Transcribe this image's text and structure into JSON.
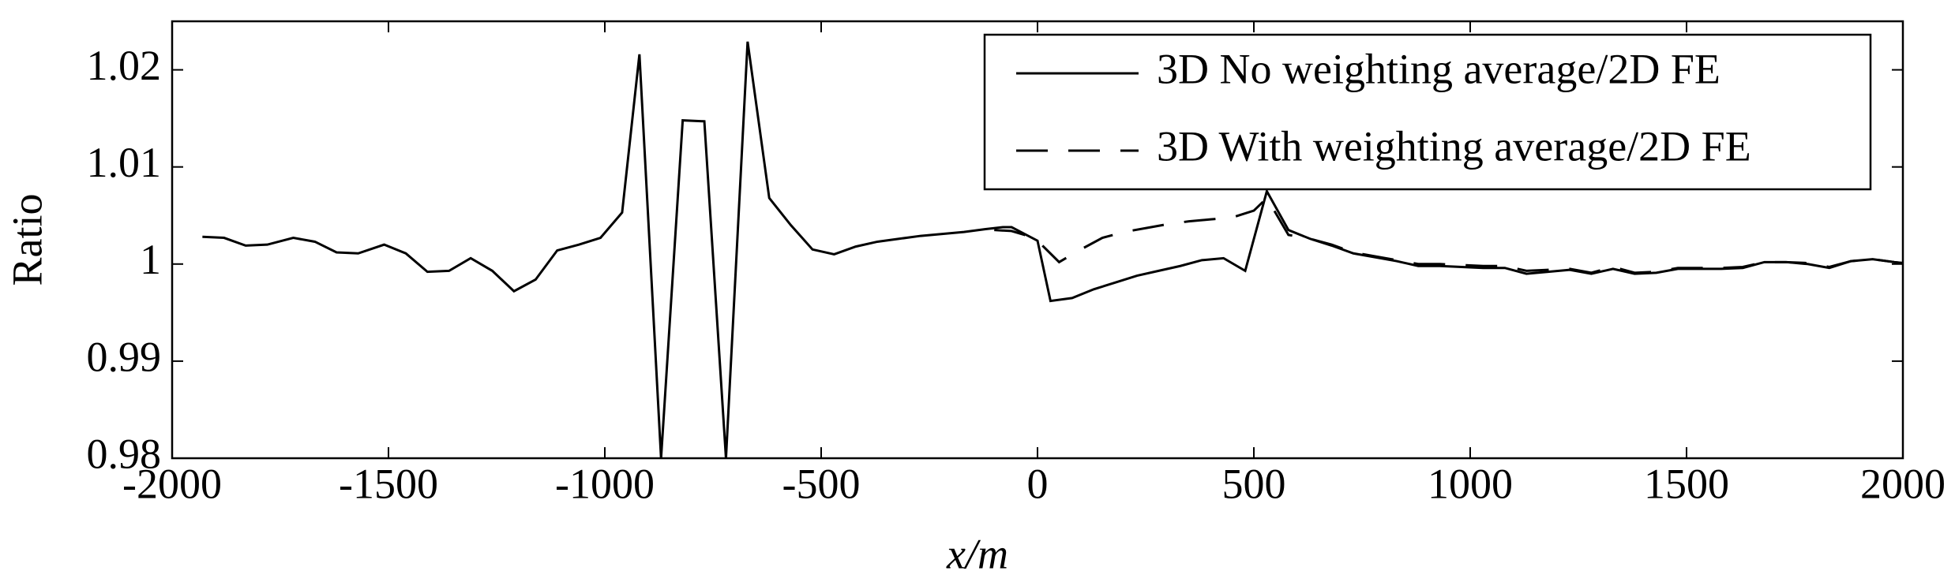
{
  "chart_data": {
    "type": "line",
    "xlabel": "x/m",
    "ylabel": "Ratio",
    "xlim": [
      -2000,
      2000
    ],
    "ylim": [
      0.98,
      1.025
    ],
    "xticks": [
      -2000,
      -1500,
      -1000,
      -500,
      0,
      500,
      1000,
      1500,
      2000
    ],
    "yticks": [
      0.98,
      0.99,
      1,
      1.01,
      1.02
    ],
    "legend": "upper right",
    "series": [
      {
        "name": "3D No weighting average/2D FE",
        "color": "#000000",
        "dash": "solid",
        "x": [
          -1930,
          -1880,
          -1830,
          -1780,
          -1720,
          -1670,
          -1620,
          -1570,
          -1510,
          -1460,
          -1410,
          -1360,
          -1310,
          -1260,
          -1210,
          -1160,
          -1110,
          -1060,
          -1010,
          -960,
          -920,
          -870,
          -820,
          -770,
          -720,
          -670,
          -620,
          -570,
          -520,
          -470,
          -420,
          -370,
          -320,
          -270,
          -220,
          -170,
          -120,
          -80,
          -60,
          0,
          30,
          80,
          130,
          180,
          230,
          280,
          330,
          380,
          430,
          480,
          530,
          580,
          630,
          680,
          730,
          780,
          830,
          880,
          930,
          980,
          1030,
          1080,
          1130,
          1180,
          1230,
          1280,
          1330,
          1380,
          1430,
          1480,
          1530,
          1580,
          1630,
          1680,
          1730,
          1780,
          1830,
          1880,
          1930,
          1980,
          2000
        ],
        "values": [
          1.0028,
          1.0027,
          1.0019,
          1.002,
          1.0027,
          1.0023,
          1.0012,
          1.0011,
          1.002,
          1.0011,
          0.9992,
          0.9993,
          1.0006,
          0.9993,
          0.9972,
          0.9984,
          1.0014,
          1.002,
          1.0027,
          1.0053,
          1.0216,
          0.98,
          1.0148,
          1.0147,
          0.98,
          1.0229,
          1.0068,
          1.004,
          1.0015,
          1.001,
          1.0018,
          1.0023,
          1.0026,
          1.0029,
          1.0031,
          1.0033,
          1.0036,
          1.0038,
          1.0038,
          1.0024,
          0.9962,
          0.9965,
          0.9974,
          0.9981,
          0.9988,
          0.9993,
          0.9998,
          1.0004,
          1.0006,
          0.9993,
          1.0075,
          1.0035,
          1.0026,
          1.0019,
          1.0011,
          1.0007,
          1.0003,
          0.9998,
          0.9998,
          0.9997,
          0.9996,
          0.9996,
          0.999,
          0.9992,
          0.9994,
          0.999,
          0.9995,
          0.999,
          0.9991,
          0.9995,
          0.9995,
          0.9995,
          0.9996,
          1.0002,
          1.0002,
          1,
          0.9996,
          1.0003,
          1.0005,
          1.0002,
          1.0001
        ]
      },
      {
        "name": "3D With weighting average/2D FE",
        "color": "#000000",
        "dash": "dashed",
        "x": [
          -100,
          -60,
          -30,
          0,
          50,
          100,
          150,
          200,
          250,
          300,
          350,
          400,
          450,
          500,
          530,
          580,
          630,
          680,
          730,
          780,
          830,
          880,
          930,
          980,
          1030,
          1080,
          1130,
          1180,
          1230,
          1280,
          1330,
          1380,
          1430,
          1480,
          1530,
          1580,
          1630,
          1680,
          1730,
          1780,
          1830,
          1880,
          1930,
          1980,
          2000
        ],
        "values": [
          1.0035,
          1.0034,
          1.003,
          1.0024,
          1.0002,
          1.0015,
          1.0027,
          1.0033,
          1.0037,
          1.0041,
          1.0044,
          1.0046,
          1.0048,
          1.0055,
          1.0068,
          1.003,
          1.0026,
          1.002,
          1.0012,
          1.0008,
          1.0004,
          1,
          1,
          0.9999,
          0.9998,
          0.9998,
          0.9993,
          0.9994,
          0.9995,
          0.9991,
          0.9997,
          0.9991,
          0.9992,
          0.9996,
          0.9996,
          0.9996,
          0.9997,
          1.0002,
          1.0002,
          1.0001,
          0.9997,
          1.0003,
          1.0005,
          1.0002,
          1.0001
        ]
      }
    ]
  }
}
